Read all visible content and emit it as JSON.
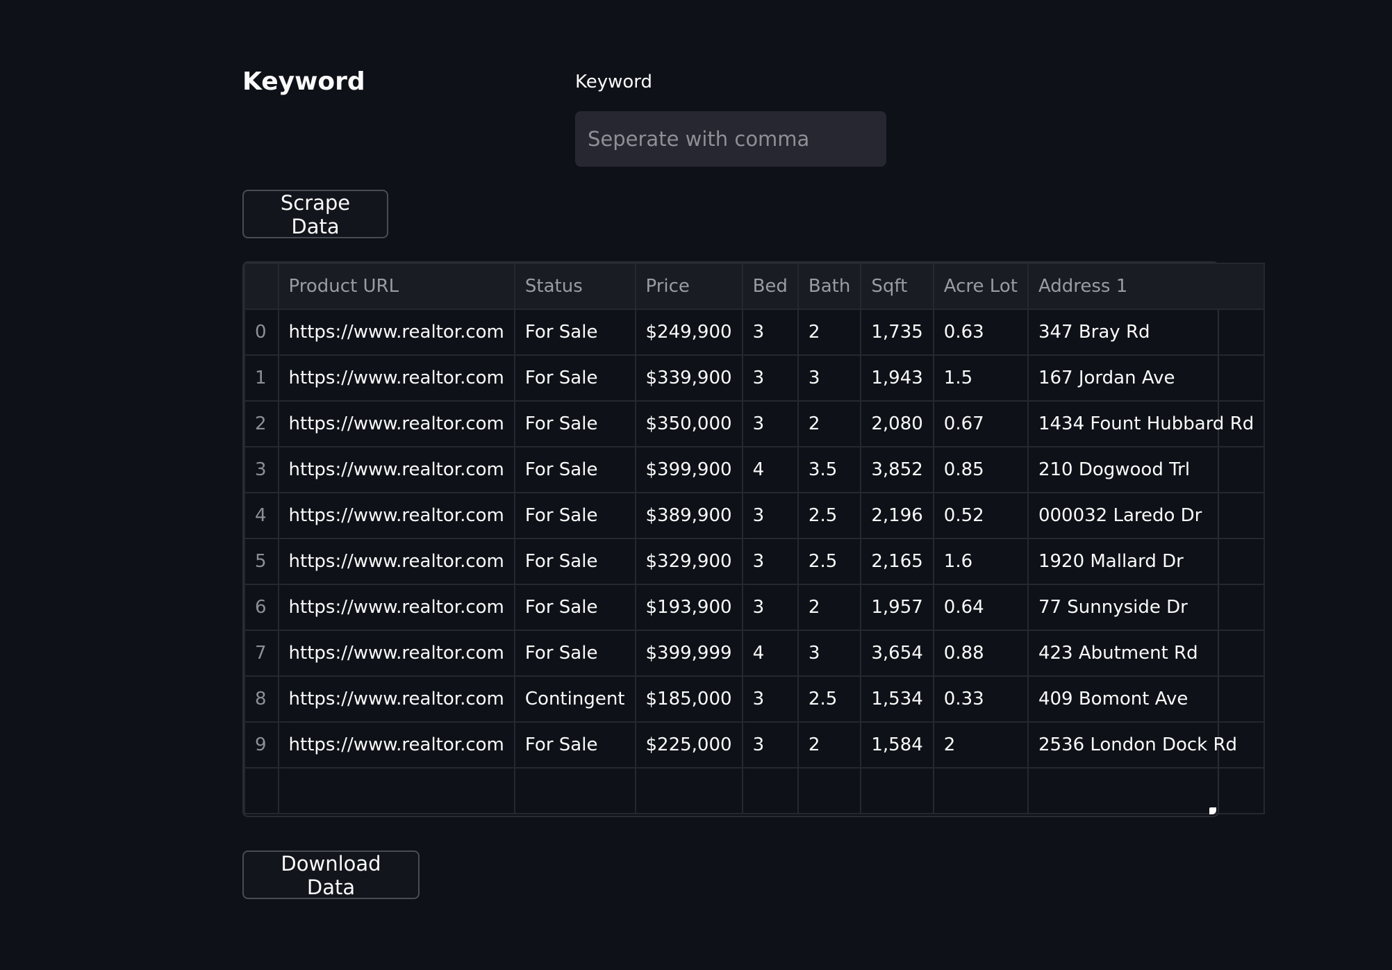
{
  "section": {
    "title": "Keyword"
  },
  "keyword_field": {
    "label": "Keyword",
    "placeholder": "Seperate with comma",
    "value": ""
  },
  "buttons": {
    "scrape": "Scrape Data",
    "download": "Download Data"
  },
  "table": {
    "columns": [
      "",
      "Product URL",
      "Status",
      "Price",
      "Bed",
      "Bath",
      "Sqft",
      "Acre Lot",
      "Address 1"
    ],
    "rows": [
      [
        "0",
        "https://www.realtor.com",
        "For Sale",
        "$249,900",
        "3",
        "2",
        "1,735",
        "0.63",
        "347 Bray Rd"
      ],
      [
        "1",
        "https://www.realtor.com",
        "For Sale",
        "$339,900",
        "3",
        "3",
        "1,943",
        "1.5",
        "167 Jordan Ave"
      ],
      [
        "2",
        "https://www.realtor.com",
        "For Sale",
        "$350,000",
        "3",
        "2",
        "2,080",
        "0.67",
        "1434 Fount Hubbard Rd"
      ],
      [
        "3",
        "https://www.realtor.com",
        "For Sale",
        "$399,900",
        "4",
        "3.5",
        "3,852",
        "0.85",
        "210 Dogwood Trl"
      ],
      [
        "4",
        "https://www.realtor.com",
        "For Sale",
        "$389,900",
        "3",
        "2.5",
        "2,196",
        "0.52",
        "000032 Laredo Dr"
      ],
      [
        "5",
        "https://www.realtor.com",
        "For Sale",
        "$329,900",
        "3",
        "2.5",
        "2,165",
        "1.6",
        "1920 Mallard Dr"
      ],
      [
        "6",
        "https://www.realtor.com",
        "For Sale",
        "$193,900",
        "3",
        "2",
        "1,957",
        "0.64",
        "77 Sunnyside Dr"
      ],
      [
        "7",
        "https://www.realtor.com",
        "For Sale",
        "$399,999",
        "4",
        "3",
        "3,654",
        "0.88",
        "423 Abutment Rd"
      ],
      [
        "8",
        "https://www.realtor.com",
        "Contingent",
        "$185,000",
        "3",
        "2.5",
        "1,534",
        "0.33",
        "409 Bomont Ave"
      ],
      [
        "9",
        "https://www.realtor.com",
        "For Sale",
        "$225,000",
        "3",
        "2",
        "1,584",
        "2",
        "2536 London Dock Rd"
      ],
      [
        "",
        "",
        "",
        "",
        "",
        "",
        "",
        "",
        ""
      ]
    ]
  },
  "colors": {
    "background": "#0e1117",
    "input_bg": "#262730",
    "text": "#fafafa",
    "muted": "#8e8f96"
  }
}
